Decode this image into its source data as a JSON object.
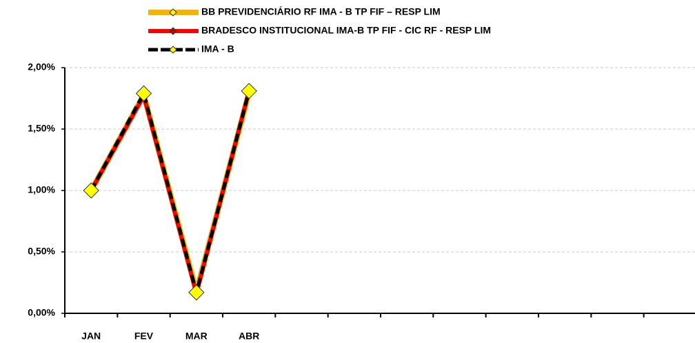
{
  "chart_data": {
    "type": "line",
    "categories": [
      "JAN",
      "FEV",
      "MAR",
      "ABR",
      null,
      null,
      null,
      null,
      null,
      null,
      null,
      null
    ],
    "series": [
      {
        "name": "BB PREVIDENCIÁRIO RF IMA - B TP FIF – RESP LIM",
        "color": "#f5b400",
        "values": [
          1.0,
          1.78,
          0.18,
          1.8,
          null,
          null,
          null,
          null,
          null,
          null,
          null,
          null
        ]
      },
      {
        "name": "BRADESCO INSTITUCIONAL IMA-B TP FIF - CIC RF - RESP LIM",
        "color": "#ff0000",
        "values": [
          1.0,
          1.77,
          0.16,
          1.81,
          null,
          null,
          null,
          null,
          null,
          null,
          null,
          null
        ]
      },
      {
        "name": "IMA - B",
        "color": "#000000",
        "values": [
          1.0,
          1.79,
          0.17,
          1.81,
          null,
          null,
          null,
          null,
          null,
          null,
          null,
          null
        ]
      }
    ],
    "ylim": [
      0,
      2
    ],
    "yticks": [
      {
        "value": 0,
        "label": "0,00%"
      },
      {
        "value": 0.5,
        "label": "0,50%"
      },
      {
        "value": 1,
        "label": "1,00%"
      },
      {
        "value": 1.5,
        "label": "1,50%"
      },
      {
        "value": 2,
        "label": "2,00%"
      }
    ],
    "grid": true,
    "legend": "top"
  }
}
